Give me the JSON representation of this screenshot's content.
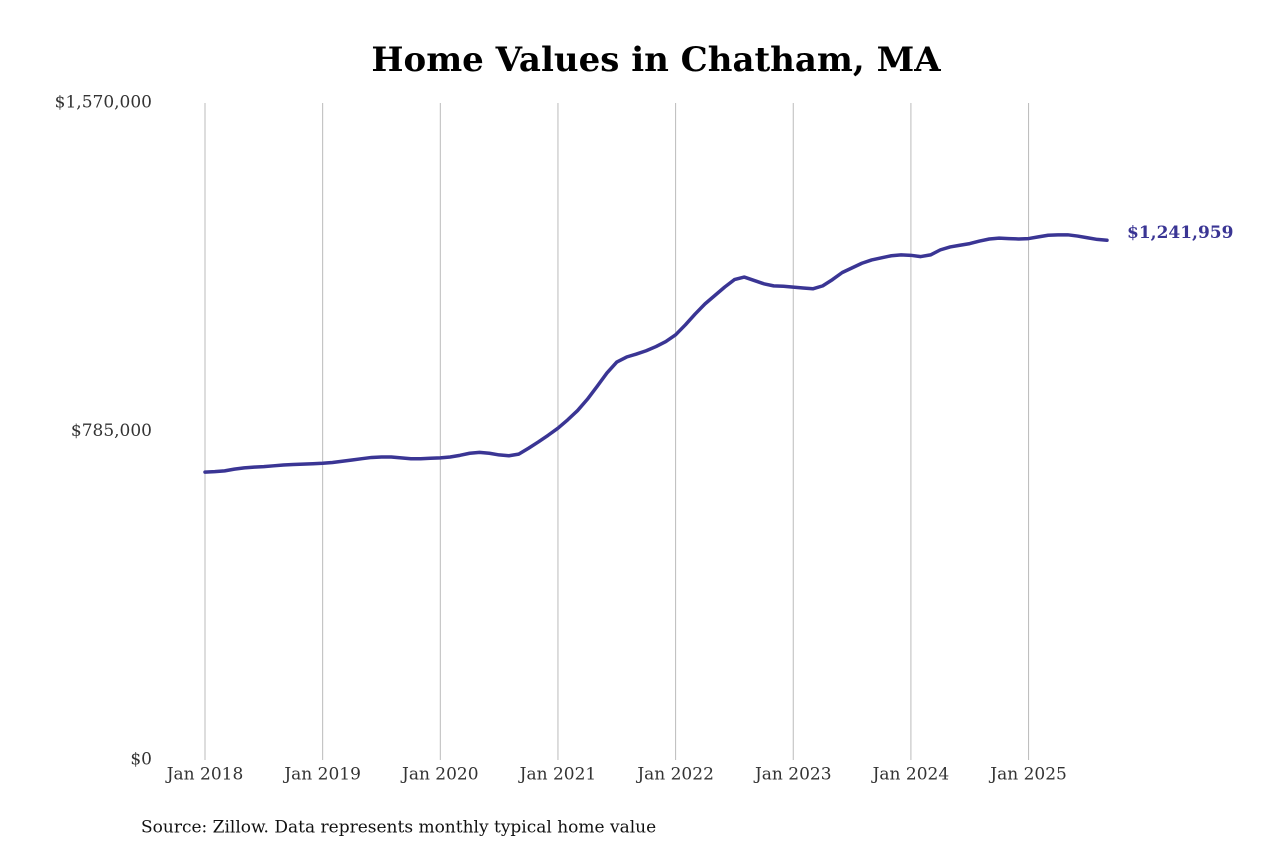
{
  "chart_data": {
    "type": "line",
    "title": "Home Values in Chatham, MA",
    "source": "Source: Zillow. Data represents monthly typical home value",
    "x": [
      "2018-01",
      "2018-02",
      "2018-03",
      "2018-04",
      "2018-05",
      "2018-06",
      "2018-07",
      "2018-08",
      "2018-09",
      "2018-10",
      "2018-11",
      "2018-12",
      "2019-01",
      "2019-02",
      "2019-03",
      "2019-04",
      "2019-05",
      "2019-06",
      "2019-07",
      "2019-08",
      "2019-09",
      "2019-10",
      "2019-11",
      "2019-12",
      "2020-01",
      "2020-02",
      "2020-03",
      "2020-04",
      "2020-05",
      "2020-06",
      "2020-07",
      "2020-08",
      "2020-09",
      "2020-10",
      "2020-11",
      "2020-12",
      "2021-01",
      "2021-02",
      "2021-03",
      "2021-04",
      "2021-05",
      "2021-06",
      "2021-07",
      "2021-08",
      "2021-09",
      "2021-10",
      "2021-11",
      "2021-12",
      "2022-01",
      "2022-02",
      "2022-03",
      "2022-04",
      "2022-05",
      "2022-06",
      "2022-07",
      "2022-08",
      "2022-09",
      "2022-10",
      "2022-11",
      "2022-12",
      "2023-01",
      "2023-02",
      "2023-03",
      "2023-04",
      "2023-05",
      "2023-06",
      "2023-07",
      "2023-08",
      "2023-09",
      "2023-10",
      "2023-11",
      "2023-12",
      "2024-01",
      "2024-02",
      "2024-03",
      "2024-04",
      "2024-05",
      "2024-06",
      "2024-07",
      "2024-08",
      "2024-09",
      "2024-10",
      "2024-11",
      "2024-12",
      "2025-01",
      "2025-02",
      "2025-03",
      "2025-04",
      "2025-05",
      "2025-06",
      "2025-07",
      "2025-08",
      "2025-09"
    ],
    "series": [
      {
        "name": "Typical home value",
        "color": "#3a3594",
        "values": [
          688000,
          689000,
          691000,
          695000,
          698000,
          700000,
          701000,
          703000,
          705000,
          706000,
          707000,
          708000,
          709000,
          711000,
          714000,
          717000,
          720000,
          723000,
          724000,
          724000,
          722000,
          720000,
          720000,
          721000,
          722000,
          724000,
          728000,
          733000,
          735000,
          733000,
          729000,
          727000,
          731000,
          745000,
          760000,
          776000,
          793000,
          813000,
          835000,
          862000,
          893000,
          925000,
          951000,
          963000,
          970000,
          978000,
          988000,
          1000000,
          1016000,
          1040000,
          1066000,
          1090000,
          1110000,
          1130000,
          1148000,
          1154000,
          1146000,
          1138000,
          1133000,
          1132000,
          1130000,
          1128000,
          1126000,
          1133000,
          1148000,
          1165000,
          1176000,
          1187000,
          1195000,
          1200000,
          1205000,
          1207000,
          1206000,
          1203000,
          1207000,
          1219000,
          1226000,
          1230000,
          1234000,
          1240000,
          1245000,
          1247000,
          1246000,
          1245000,
          1246000,
          1250000,
          1254000,
          1255000,
          1255000,
          1252000,
          1248000,
          1244000,
          1241959
        ],
        "value_labels": [
          null,
          null,
          null,
          null,
          null,
          null,
          null,
          null,
          null,
          null,
          null,
          null,
          null,
          null,
          null,
          null,
          null,
          null,
          null,
          null,
          null,
          null,
          null,
          null,
          null,
          null,
          null,
          null,
          null,
          null,
          null,
          null,
          null,
          null,
          null,
          null,
          null,
          null,
          null,
          null,
          null,
          null,
          null,
          null,
          null,
          null,
          null,
          null,
          null,
          null,
          null,
          null,
          null,
          null,
          null,
          null,
          null,
          null,
          null,
          null,
          null,
          null,
          null,
          null,
          null,
          null,
          null,
          null,
          null,
          null,
          null,
          null,
          null,
          null,
          null,
          null,
          null,
          null,
          null,
          null,
          null,
          null,
          null,
          null,
          null,
          null,
          null,
          null,
          null,
          null,
          null,
          null,
          "$1,241,959"
        ]
      }
    ],
    "xlim": [
      "2018-01",
      "2025-09"
    ],
    "xticks": [
      {
        "value": "2018-01",
        "label": "Jan 2018"
      },
      {
        "value": "2019-01",
        "label": "Jan 2019"
      },
      {
        "value": "2020-01",
        "label": "Jan 2020"
      },
      {
        "value": "2021-01",
        "label": "Jan 2021"
      },
      {
        "value": "2022-01",
        "label": "Jan 2022"
      },
      {
        "value": "2023-01",
        "label": "Jan 2023"
      },
      {
        "value": "2024-01",
        "label": "Jan 2024"
      },
      {
        "value": "2025-01",
        "label": "Jan 2025"
      }
    ],
    "ylim": [
      0,
      1570000
    ],
    "yticks": [
      {
        "value": 0,
        "label": "$0"
      },
      {
        "value": 785000,
        "label": "$785,000"
      },
      {
        "value": 1570000,
        "label": "$1,570,000"
      }
    ],
    "xgrid": true,
    "ygrid": false
  }
}
